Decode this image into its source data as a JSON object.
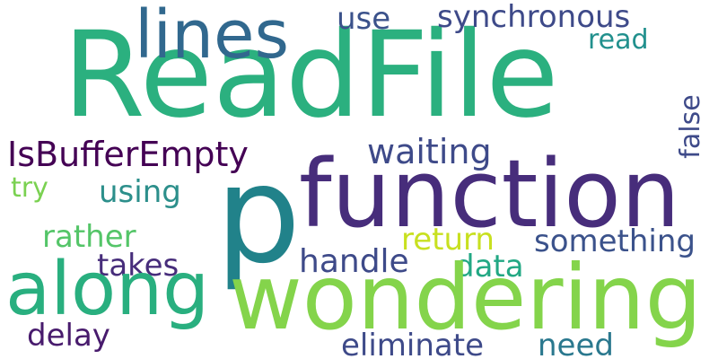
{
  "words": {
    "readfile": {
      "text": "ReadFile",
      "color": "#2bb07f"
    },
    "lines": {
      "text": "lines",
      "color": "#31688e"
    },
    "use": {
      "text": "use",
      "color": "#3b528b"
    },
    "synchronous": {
      "text": "synchronous",
      "color": "#3e4a89"
    },
    "read": {
      "text": "read",
      "color": "#21908d"
    },
    "isbuffer": {
      "text": "IsBufferEmpty",
      "color": "#440154"
    },
    "waiting": {
      "text": "waiting",
      "color": "#3e4a89"
    },
    "function": {
      "text": "function",
      "color": "#472d7b"
    },
    "p": {
      "text": "p",
      "color": "#21828a"
    },
    "false": {
      "text": "false",
      "color": "#3e4a89"
    },
    "try": {
      "text": "try",
      "color": "#7ad151"
    },
    "using": {
      "text": "using",
      "color": "#2c8f8b"
    },
    "rather": {
      "text": "rather",
      "color": "#54c568"
    },
    "return": {
      "text": "return",
      "color": "#c8e020"
    },
    "something": {
      "text": "something",
      "color": "#3b528b"
    },
    "handle": {
      "text": "handle",
      "color": "#3e4a89"
    },
    "takes": {
      "text": "takes",
      "color": "#472d7b"
    },
    "data": {
      "text": "data",
      "color": "#22a884"
    },
    "along": {
      "text": "along",
      "color": "#29af7f"
    },
    "wondering": {
      "text": "wondering",
      "color": "#84d44b"
    },
    "delay": {
      "text": "delay",
      "color": "#481b6d"
    },
    "eliminate": {
      "text": "eliminate",
      "color": "#3e4a89"
    },
    "need": {
      "text": "need",
      "color": "#2a788e"
    }
  }
}
